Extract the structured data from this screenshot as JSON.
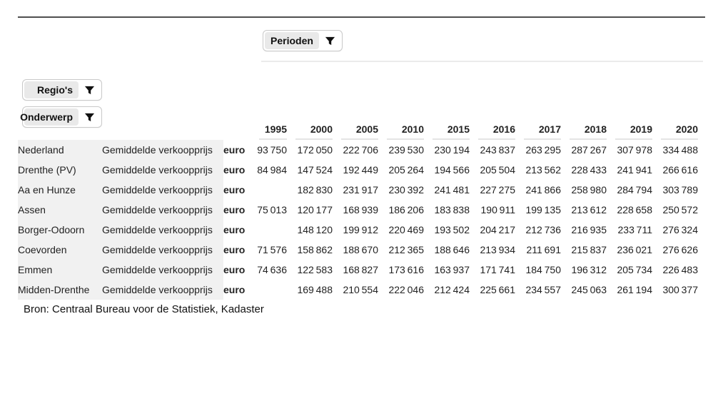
{
  "filters": {
    "perioden": "Perioden",
    "regios": "Regio's",
    "onderwerp": "Onderwerp"
  },
  "table": {
    "years": [
      "1995",
      "2000",
      "2005",
      "2010",
      "2015",
      "2016",
      "2017",
      "2018",
      "2019",
      "2020"
    ],
    "rows": [
      {
        "region": "Nederland",
        "topic": "Gemiddelde verkoopprijs",
        "unit": "euro",
        "values": [
          93750,
          172050,
          222706,
          239530,
          230194,
          243837,
          263295,
          287267,
          307978,
          334488
        ]
      },
      {
        "region": "Drenthe (PV)",
        "topic": "Gemiddelde verkoopprijs",
        "unit": "euro",
        "values": [
          84984,
          147524,
          192449,
          205264,
          194566,
          205504,
          213562,
          228433,
          241941,
          266616
        ]
      },
      {
        "region": "Aa en Hunze",
        "topic": "Gemiddelde verkoopprijs",
        "unit": "euro",
        "values": [
          null,
          182830,
          231917,
          230392,
          241481,
          227275,
          241866,
          258980,
          284794,
          303789
        ]
      },
      {
        "region": "Assen",
        "topic": "Gemiddelde verkoopprijs",
        "unit": "euro",
        "values": [
          75013,
          120177,
          168939,
          186206,
          183838,
          190911,
          199135,
          213612,
          228658,
          250572
        ]
      },
      {
        "region": "Borger-Odoorn",
        "topic": "Gemiddelde verkoopprijs",
        "unit": "euro",
        "values": [
          null,
          148120,
          199912,
          220469,
          193502,
          204217,
          212736,
          216935,
          233711,
          276324
        ]
      },
      {
        "region": "Coevorden",
        "topic": "Gemiddelde verkoopprijs",
        "unit": "euro",
        "values": [
          71576,
          158862,
          188670,
          212365,
          188646,
          213934,
          211691,
          215837,
          236021,
          276626
        ]
      },
      {
        "region": "Emmen",
        "topic": "Gemiddelde verkoopprijs",
        "unit": "euro",
        "values": [
          74636,
          122583,
          168827,
          173616,
          163937,
          171741,
          184750,
          196312,
          205734,
          226483
        ]
      },
      {
        "region": "Midden-Drenthe",
        "topic": "Gemiddelde verkoopprijs",
        "unit": "euro",
        "values": [
          null,
          169488,
          210554,
          222046,
          212424,
          225661,
          234557,
          245063,
          261194,
          300377
        ]
      }
    ]
  },
  "source": "Bron: Centraal Bureau voor de Statistiek, Kadaster",
  "colors": {
    "text": "#222222",
    "panel_gray": "#f1f1f1",
    "divider_dark": "#4f4f4f",
    "divider_light": "#ebebeb",
    "header_underline": "#e4e4e4",
    "button_gray": "#e9e9e9",
    "button_border": "#c9c9c9"
  }
}
